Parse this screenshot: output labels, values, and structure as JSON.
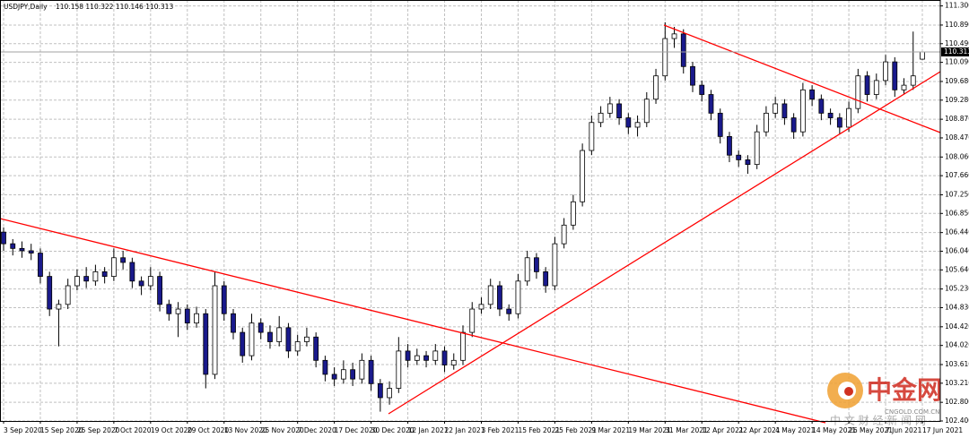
{
  "chart_data": {
    "type": "candlestick",
    "title": "USDJPY,Daily",
    "subtitle": "110.158 110.322 110.146 110.313",
    "categories": [
      "3 Sep 2020",
      null,
      null,
      null,
      "15 Sep 2020",
      null,
      null,
      null,
      "25 Sep 2020",
      null,
      null,
      null,
      "7 Oct 2020",
      null,
      null,
      null,
      "19 Oct 2020",
      null,
      null,
      null,
      "29 Oct 2020",
      null,
      null,
      null,
      "13 Nov 2020",
      null,
      null,
      null,
      "25 Nov 2020",
      null,
      null,
      null,
      "7 Dec 2020",
      null,
      null,
      null,
      "17 Dec 2020",
      null,
      null,
      null,
      "30 Dec 2020",
      null,
      null,
      null,
      "12 Jan 2021",
      null,
      null,
      null,
      "22 Jan 2021",
      null,
      null,
      null,
      "3 Feb 2021",
      null,
      null,
      null,
      "15 Feb 2021",
      null,
      null,
      null,
      "25 Feb 2021",
      null,
      null,
      null,
      "9 Mar 2021",
      null,
      null,
      null,
      "19 Mar 2021",
      null,
      null,
      null,
      "31 Mar 2021",
      null,
      null,
      null,
      "12 Apr 2021",
      null,
      null,
      null,
      "22 Apr 2021",
      null,
      null,
      null,
      "4 May 2021",
      null,
      null,
      null,
      "14 May 2021",
      null,
      null,
      null,
      "26 May 2021",
      null,
      null,
      null,
      "7 Jun 2021",
      null,
      null,
      null,
      "17 Jun 2021"
    ],
    "open": [
      106.45,
      106.2,
      106.1,
      106.05,
      106,
      105.5,
      104.8,
      104.9,
      105.3,
      105.5,
      105.4,
      105.6,
      105.5,
      105.9,
      105.8,
      105.4,
      105.3,
      105.5,
      104.9,
      104.7,
      104.8,
      104.5,
      104.7,
      103.4,
      105.3,
      104.7,
      104.3,
      103.8,
      104.5,
      104.3,
      104.1,
      104.4,
      103.9,
      104.1,
      104.2,
      103.7,
      103.4,
      103.3,
      103.5,
      103.3,
      103.7,
      103.2,
      102.9,
      103.1,
      103.9,
      103.7,
      103.8,
      103.7,
      103.9,
      103.6,
      103.7,
      104.3,
      104.8,
      104.9,
      105.3,
      104.8,
      104.7,
      105.4,
      105.9,
      105.6,
      105.3,
      106.2,
      106.6,
      107.1,
      108.2,
      108.8,
      109,
      109.2,
      108.9,
      108.7,
      108.8,
      109.3,
      109.8,
      110.6,
      110.7,
      110,
      109.6,
      109.4,
      109,
      108.5,
      108.1,
      108,
      107.9,
      108.6,
      109,
      109.2,
      108.9,
      108.6,
      109.5,
      109.3,
      109,
      108.9,
      108.7,
      109.1,
      109.8,
      109.4,
      109.7,
      110.1,
      109.5,
      109.6,
      110.158
    ],
    "high": [
      106.55,
      106.3,
      106.25,
      106.2,
      106.1,
      105.6,
      105,
      105.45,
      105.65,
      105.7,
      105.75,
      105.7,
      106.1,
      106.05,
      105.9,
      105.5,
      105.7,
      105.6,
      105,
      104.95,
      104.9,
      104.85,
      104.8,
      105.6,
      105.4,
      104.8,
      104.4,
      104.7,
      104.6,
      104.45,
      104.65,
      104.5,
      104.25,
      104.4,
      104.3,
      103.8,
      103.55,
      103.7,
      103.65,
      103.85,
      103.8,
      103.3,
      103.25,
      104.2,
      104.05,
      103.95,
      103.9,
      104.05,
      104,
      103.85,
      104.45,
      104.95,
      105.05,
      105.45,
      105.4,
      104.9,
      105.55,
      106.05,
      106,
      105.7,
      106.35,
      106.75,
      107.25,
      108.35,
      108.95,
      109.15,
      109.35,
      109.3,
      109,
      108.95,
      109.45,
      109.95,
      110.95,
      110.85,
      110.8,
      110.1,
      109.7,
      109.5,
      109.1,
      108.6,
      108.2,
      108.1,
      108.75,
      109.15,
      109.35,
      109.3,
      109,
      109.65,
      109.6,
      109.4,
      109.1,
      109,
      109.25,
      109.95,
      109.9,
      109.85,
      110.25,
      110.2,
      109.75,
      110.75,
      110.322
    ],
    "low": [
      106.05,
      105.95,
      105.9,
      105.85,
      105.35,
      104.65,
      104,
      104.8,
      105.2,
      105.25,
      105.3,
      105.35,
      105.4,
      105.65,
      105.25,
      105.1,
      105.2,
      104.75,
      104.55,
      104.2,
      104.35,
      104.4,
      103.1,
      103.3,
      104.55,
      104.15,
      103.65,
      103.7,
      104.15,
      103.95,
      104,
      103.75,
      103.8,
      104,
      103.55,
      103.25,
      103.15,
      103.2,
      103.15,
      103.2,
      103.05,
      102.6,
      102.75,
      103,
      103.55,
      103.6,
      103.55,
      103.6,
      103.45,
      103.5,
      103.6,
      104.2,
      104.7,
      104.8,
      104.65,
      104.55,
      104.6,
      105.3,
      105.45,
      105.15,
      105.2,
      106.1,
      106.5,
      107,
      108.1,
      108.7,
      108.9,
      108.75,
      108.55,
      108.5,
      108.7,
      109.2,
      109.7,
      110.4,
      109.85,
      109.45,
      109.25,
      108.85,
      108.35,
      107.95,
      107.85,
      107.7,
      107.8,
      108.5,
      108.9,
      108.75,
      108.45,
      108.5,
      109.15,
      108.85,
      108.75,
      108.55,
      108.6,
      109,
      109.25,
      109.3,
      109.6,
      109.35,
      109.4,
      109.5,
      110.146
    ],
    "close": [
      106.2,
      106.1,
      106.05,
      106,
      105.5,
      104.8,
      104.9,
      105.3,
      105.5,
      105.4,
      105.6,
      105.5,
      105.9,
      105.8,
      105.4,
      105.3,
      105.5,
      104.9,
      104.7,
      104.8,
      104.5,
      104.7,
      103.4,
      105.3,
      104.7,
      104.3,
      103.8,
      104.5,
      104.3,
      104.1,
      104.4,
      103.9,
      104.1,
      104.2,
      103.7,
      103.4,
      103.3,
      103.5,
      103.3,
      103.7,
      103.2,
      102.9,
      103.1,
      103.9,
      103.7,
      103.8,
      103.7,
      103.9,
      103.6,
      103.7,
      104.3,
      104.8,
      104.9,
      105.3,
      104.8,
      104.7,
      105.4,
      105.9,
      105.6,
      105.3,
      106.2,
      106.6,
      107.1,
      108.2,
      108.8,
      109,
      109.2,
      108.9,
      108.7,
      108.8,
      109.3,
      109.8,
      110.6,
      110.7,
      110,
      109.6,
      109.4,
      109,
      108.5,
      108.1,
      108,
      107.9,
      108.6,
      109,
      109.2,
      108.9,
      108.6,
      109.5,
      109.3,
      109,
      108.9,
      108.7,
      109.1,
      109.8,
      109.4,
      109.7,
      110.1,
      109.5,
      109.6,
      109.8,
      110.313
    ],
    "up_color": "#ffffff",
    "down_color": "#1a1a8c",
    "wick_color": "#000000",
    "ylim": [
      102.4,
      111.35
    ],
    "yticks": [
      {
        "value": 111.3,
        "label": "111.300"
      },
      {
        "value": 110.89,
        "label": "110.890"
      },
      {
        "value": 110.49,
        "label": "110.490"
      },
      {
        "value": 110.09,
        "label": "110.090"
      },
      {
        "value": 109.68,
        "label": "109.680"
      },
      {
        "value": 109.28,
        "label": "109.280"
      },
      {
        "value": 108.87,
        "label": "108.870"
      },
      {
        "value": 108.47,
        "label": "108.470"
      },
      {
        "value": 108.06,
        "label": "108.060"
      },
      {
        "value": 107.66,
        "label": "107.660"
      },
      {
        "value": 107.25,
        "label": "107.250"
      },
      {
        "value": 106.85,
        "label": "106.850"
      },
      {
        "value": 106.44,
        "label": "106.440"
      },
      {
        "value": 106.04,
        "label": "106.040"
      },
      {
        "value": 105.64,
        "label": "105.640"
      },
      {
        "value": 105.23,
        "label": "105.230"
      },
      {
        "value": 104.83,
        "label": "104.830"
      },
      {
        "value": 104.42,
        "label": "104.420"
      },
      {
        "value": 104.02,
        "label": "104.020"
      },
      {
        "value": 103.61,
        "label": "103.610"
      },
      {
        "value": 103.21,
        "label": "103.210"
      },
      {
        "value": 102.8,
        "label": "102.800"
      },
      {
        "value": 102.4,
        "label": "102.400"
      }
    ],
    "last_price": {
      "value": 110.313,
      "label": "110.313"
    },
    "grid": true
  },
  "watermark": {
    "brand": "中金网",
    "domain": "CNGOLD.COM.CN",
    "tagline": "中 文 财 经 新 闻 网"
  }
}
